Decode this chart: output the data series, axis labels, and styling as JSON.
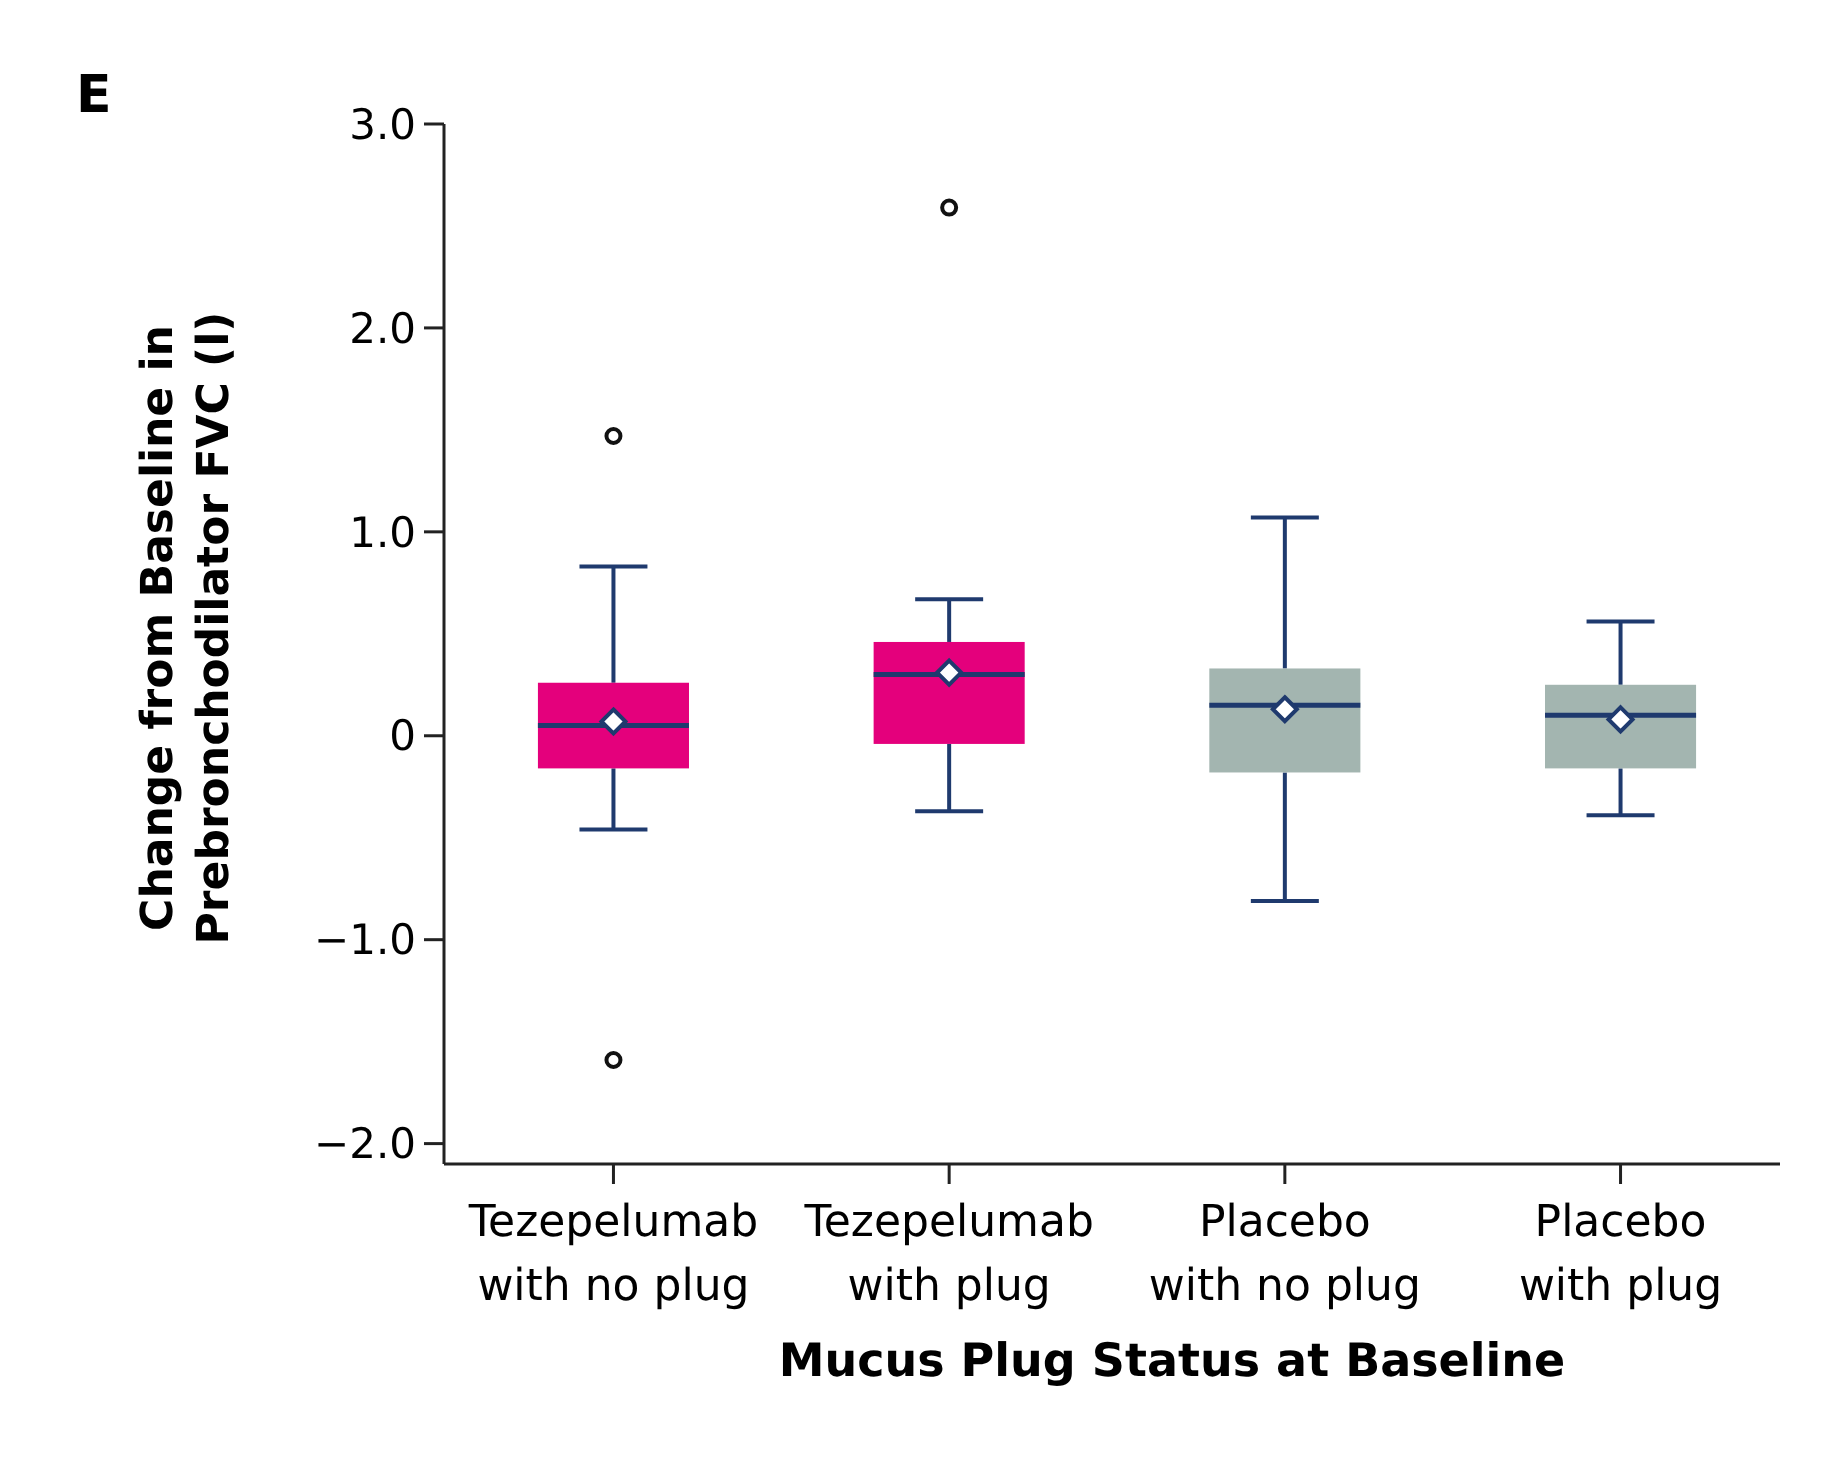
{
  "chart_data": {
    "type": "box",
    "annotations": [
      "E"
    ],
    "xlabel": "Mucus Plug Status at Baseline",
    "ylabel": "Change from Baseline in Prebronchodilator FVC (l)",
    "categories": [
      "Tezepelumab with no plug",
      "Tezepelumab with plug",
      "Placebo with no plug",
      "Placebo with plug"
    ],
    "colors": [
      "#e4007c",
      "#e4007c",
      "#a3b5b0",
      "#a3b5b0"
    ],
    "boxes": [
      {
        "low": -0.46,
        "q1": -0.16,
        "median": 0.05,
        "q3": 0.26,
        "high": 0.83,
        "mean": 0.07,
        "outliers": [
          1.47,
          -1.59
        ]
      },
      {
        "low": -0.37,
        "q1": -0.04,
        "median": 0.3,
        "q3": 0.46,
        "high": 0.67,
        "mean": 0.31,
        "outliers": [
          2.59
        ]
      },
      {
        "low": -0.81,
        "q1": -0.18,
        "median": 0.15,
        "q3": 0.33,
        "high": 1.07,
        "mean": 0.13
      },
      {
        "low": -0.39,
        "q1": -0.16,
        "median": 0.1,
        "q3": 0.25,
        "high": 0.56,
        "mean": 0.08
      }
    ],
    "ylim": [
      -2.1,
      3.0
    ],
    "yticks": [
      {
        "value": 3,
        "label": "3.0"
      },
      {
        "value": 2,
        "label": "2.0"
      },
      {
        "value": 1,
        "label": "1.0"
      },
      0,
      {
        "value": -1,
        "label": "−1.0"
      },
      {
        "value": -2,
        "label": "−2.0"
      }
    ],
    "grid": false
  }
}
